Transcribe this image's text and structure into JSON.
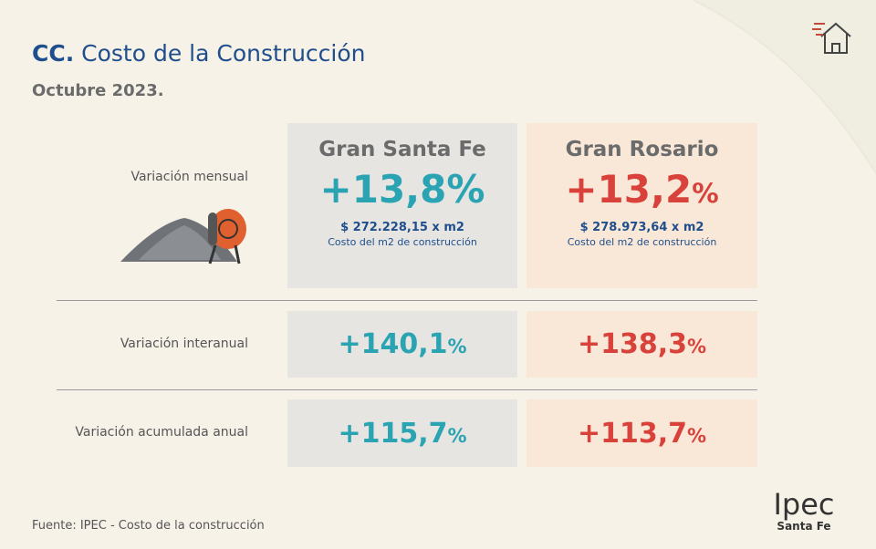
{
  "header": {
    "code": "CC.",
    "title": "Costo de la Construcción",
    "subtitle": "Octubre 2023."
  },
  "regions": [
    "Gran Santa Fe",
    "Gran Rosario"
  ],
  "rows": [
    {
      "label": "Variación mensual",
      "cells": [
        {
          "value": "+13,8",
          "unit": "%",
          "price": "$ 272.228,15 x m2",
          "note": "Costo del m2 de construcción"
        },
        {
          "value": "+13,2",
          "unit": "%",
          "price": "$ 278.973,64 x m2",
          "note": "Costo del m2 de construcción"
        }
      ]
    },
    {
      "label": "Variación interanual",
      "cells": [
        {
          "value": "+140,1",
          "unit": "%"
        },
        {
          "value": "+138,3",
          "unit": "%"
        }
      ]
    },
    {
      "label": "Variación acumulada anual",
      "cells": [
        {
          "value": "+115,7",
          "unit": "%"
        },
        {
          "value": "+113,7",
          "unit": "%"
        }
      ]
    }
  ],
  "source": "Fuente: IPEC - Costo de la construcción",
  "logo": {
    "name": "Ipec",
    "sub": "Santa Fe"
  }
}
